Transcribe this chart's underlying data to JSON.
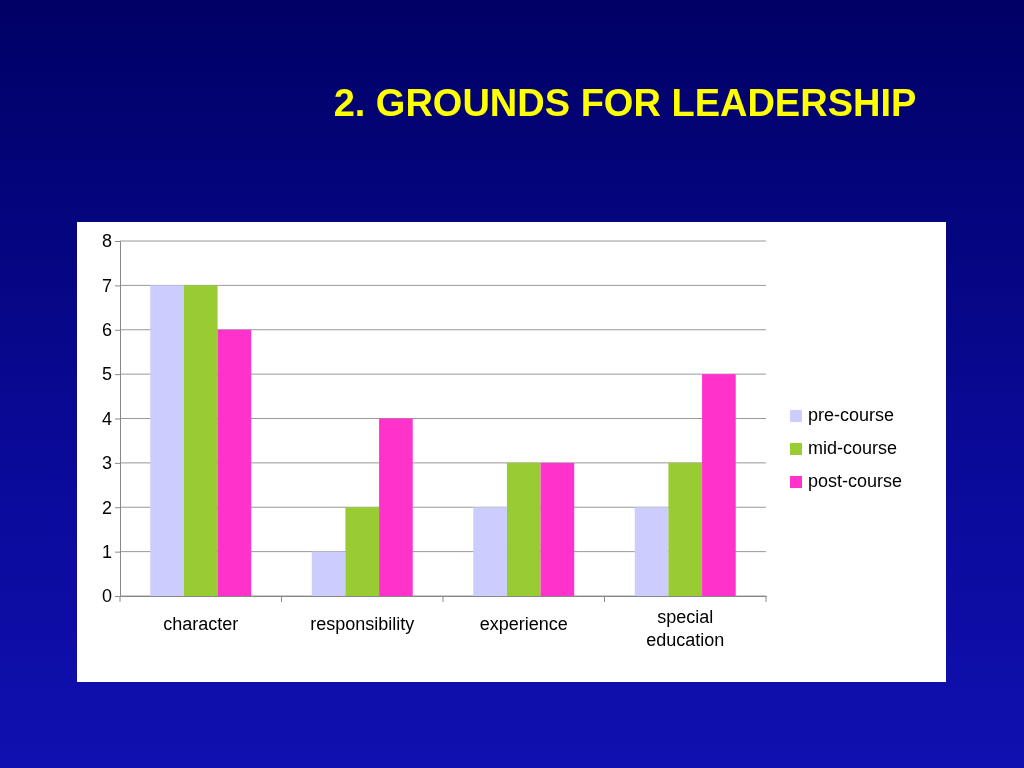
{
  "chart_data": {
    "type": "bar",
    "title": "2. GROUNDS FOR LEADERSHIP",
    "categories": [
      "character",
      "responsibility",
      "experience",
      "special education"
    ],
    "series": [
      {
        "name": "pre-course",
        "color": "#ccccff",
        "values": [
          7,
          1,
          2,
          2
        ]
      },
      {
        "name": "mid-course",
        "color": "#99cc33",
        "values": [
          7,
          2,
          3,
          3
        ]
      },
      {
        "name": "post-course",
        "color": "#ff33cc",
        "values": [
          6,
          4,
          3,
          5
        ]
      }
    ],
    "ylim": [
      0,
      8
    ],
    "yticks": [
      0,
      1,
      2,
      3,
      4,
      5,
      6,
      7,
      8
    ],
    "grid": "y",
    "legend": "right"
  }
}
